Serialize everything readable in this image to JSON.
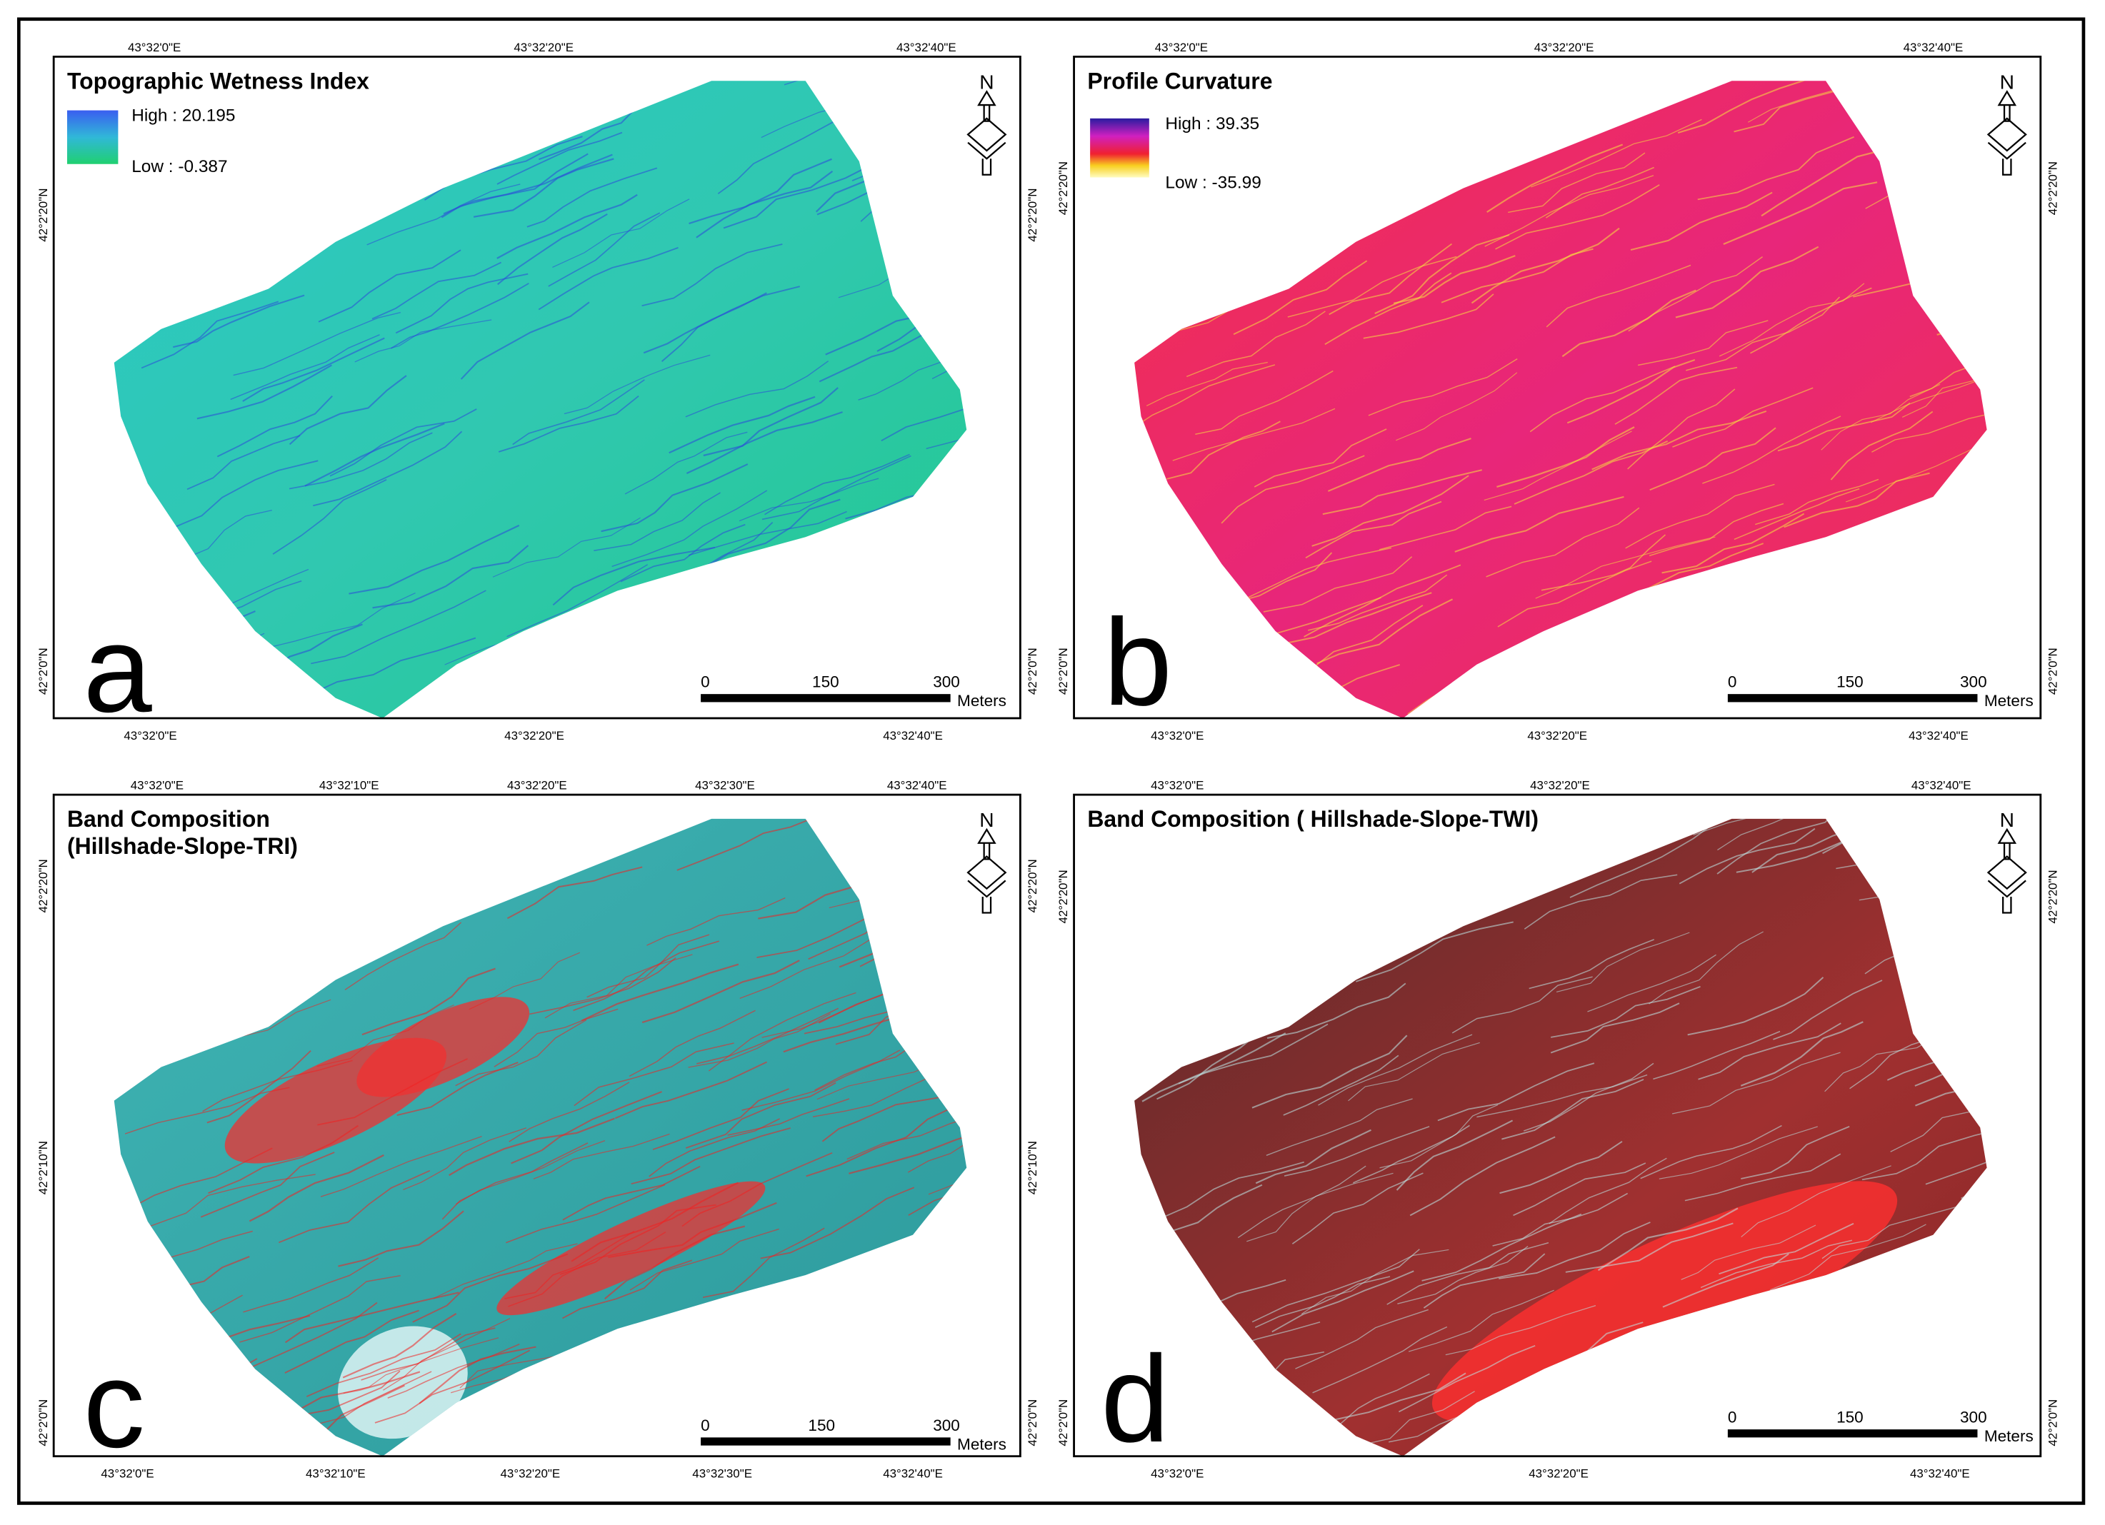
{
  "panels": [
    {
      "letter": "a",
      "title": [
        "Topographic Wetness Index"
      ],
      "legend": {
        "high": "High : 20.195",
        "low": "Low : -0.387"
      },
      "top_labels": [
        "43°32'0\"E",
        "43°32'20\"E",
        "43°32'40\"E"
      ],
      "bottom_labels": [
        "43°32'0\"E",
        "43°32'20\"E",
        "43°32'40\"E"
      ],
      "left_labels": [
        "42°2'20\"N",
        "42°2'0\"N"
      ],
      "right_labels": [
        "42°2'20\"N",
        "42°2'0\"N"
      ],
      "north": "N",
      "scale": {
        "ticks": [
          "0",
          "150",
          "300"
        ],
        "unit": "Meters"
      }
    },
    {
      "letter": "b",
      "title": [
        "Profile Curvature"
      ],
      "legend": {
        "high": "High : 39.35",
        "low": "Low : -35.99"
      },
      "top_labels": [
        "43°32'0\"E",
        "43°32'20\"E",
        "43°32'40\"E"
      ],
      "bottom_labels": [
        "43°32'0\"E",
        "43°32'20\"E",
        "43°32'40\"E"
      ],
      "left_labels": [
        "42°2'20\"N",
        "42°2'0\"N"
      ],
      "right_labels": [
        "42°2'20\"N",
        "42°2'0\"N"
      ],
      "north": "N",
      "scale": {
        "ticks": [
          "0",
          "150",
          "300"
        ],
        "unit": "Meters"
      }
    },
    {
      "letter": "c",
      "title": [
        "Band Composition",
        "(Hillshade-Slope-TRI)"
      ],
      "top_labels": [
        "43°32'0\"E",
        "43°32'10\"E",
        "43°32'20\"E",
        "43°32'30\"E",
        "43°32'40\"E"
      ],
      "bottom_labels": [
        "43°32'0\"E",
        "43°32'10\"E",
        "43°32'20\"E",
        "43°32'30\"E",
        "43°32'40\"E"
      ],
      "left_labels": [
        "42°2'20\"N",
        "42°2'10\"N",
        "42°2'0\"N"
      ],
      "right_labels": [
        "42°2'20\"N",
        "42°2'10\"N",
        "42°2'0\"N"
      ],
      "north": "N",
      "scale": {
        "ticks": [
          "0",
          "150",
          "300"
        ],
        "unit": "Meters"
      }
    },
    {
      "letter": "d",
      "title": [
        "Band Composition ( Hillshade-Slope-TWI)"
      ],
      "top_labels": [
        "43°32'0\"E",
        "43°32'20\"E",
        "43°32'40\"E"
      ],
      "bottom_labels": [
        "43°32'0\"E",
        "43°32'20\"E",
        "43°32'40\"E"
      ],
      "left_labels": [
        "42°2'20\"N",
        "42°2'0\"N"
      ],
      "right_labels": [
        "42°2'20\"N",
        "42°2'0\"N"
      ],
      "north": "N",
      "scale": {
        "ticks": [
          "0",
          "150",
          "300"
        ],
        "unit": "Meters"
      }
    }
  ]
}
